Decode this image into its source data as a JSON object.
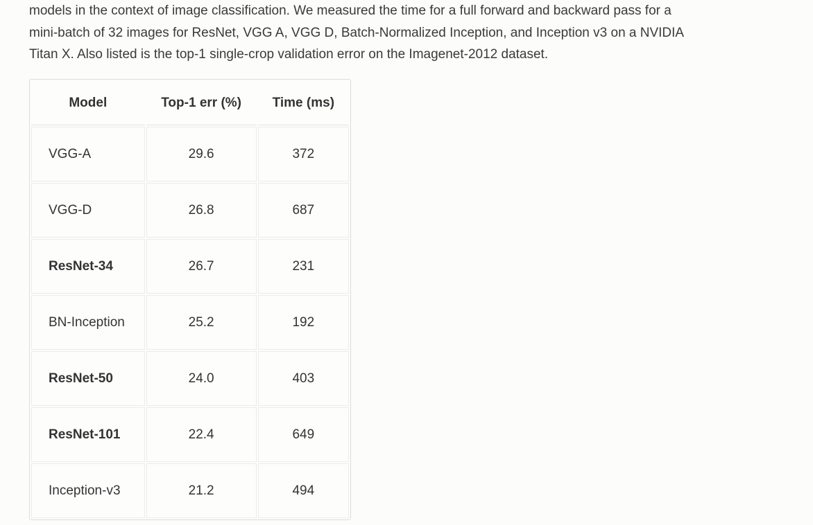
{
  "intro": {
    "lines": [
      "models in the context of image classification. We measured the time for a full forward and backward pass for a",
      "mini-batch of 32 images for ResNet, VGG A, VGG D, Batch-Normalized Inception, and Inception v3 on a NVIDIA",
      "Titan X. Also listed is the top-1 single-crop validation error on the Imagenet-2012 dataset."
    ]
  },
  "table": {
    "headers": [
      "Model",
      "Top-1 err (%)",
      "Time (ms)"
    ],
    "rows": [
      {
        "model": "VGG-A",
        "err": "29.6",
        "time": "372",
        "bold": false
      },
      {
        "model": "VGG-D",
        "err": "26.8",
        "time": "687",
        "bold": false
      },
      {
        "model": "ResNet-34",
        "err": "26.7",
        "time": "231",
        "bold": true
      },
      {
        "model": "BN-Inception",
        "err": "25.2",
        "time": "192",
        "bold": false
      },
      {
        "model": "ResNet-50",
        "err": "24.0",
        "time": "403",
        "bold": true
      },
      {
        "model": "ResNet-101",
        "err": "22.4",
        "time": "649",
        "bold": true
      },
      {
        "model": "Inception-v3",
        "err": "21.2",
        "time": "494",
        "bold": false
      }
    ]
  }
}
